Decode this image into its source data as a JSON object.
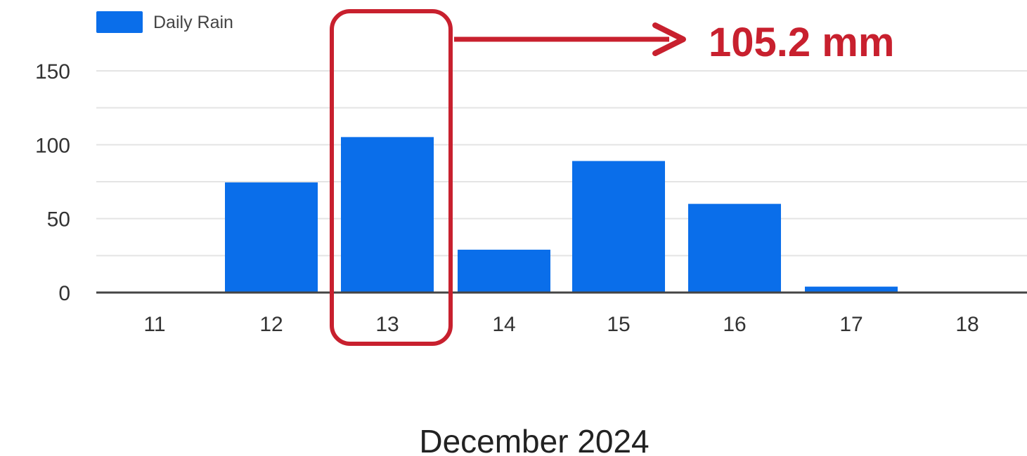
{
  "chart_data": {
    "type": "bar",
    "categories": [
      "11",
      "12",
      "13",
      "14",
      "15",
      "16",
      "17",
      "18"
    ],
    "series": [
      {
        "name": "Daily Rain",
        "values": [
          0.3,
          74.5,
          105.2,
          29,
          89,
          60,
          4,
          0.3
        ],
        "color": "#0a6eea"
      }
    ],
    "xlabel": "December 2024",
    "ylabel": "",
    "ylim": [
      0,
      150
    ],
    "yticks": [
      "0",
      "50",
      "100",
      "150"
    ],
    "grid": true,
    "legend": "top-left",
    "annotation": {
      "category": "13",
      "text": "105.2 mm",
      "color": "#c8202e"
    }
  }
}
